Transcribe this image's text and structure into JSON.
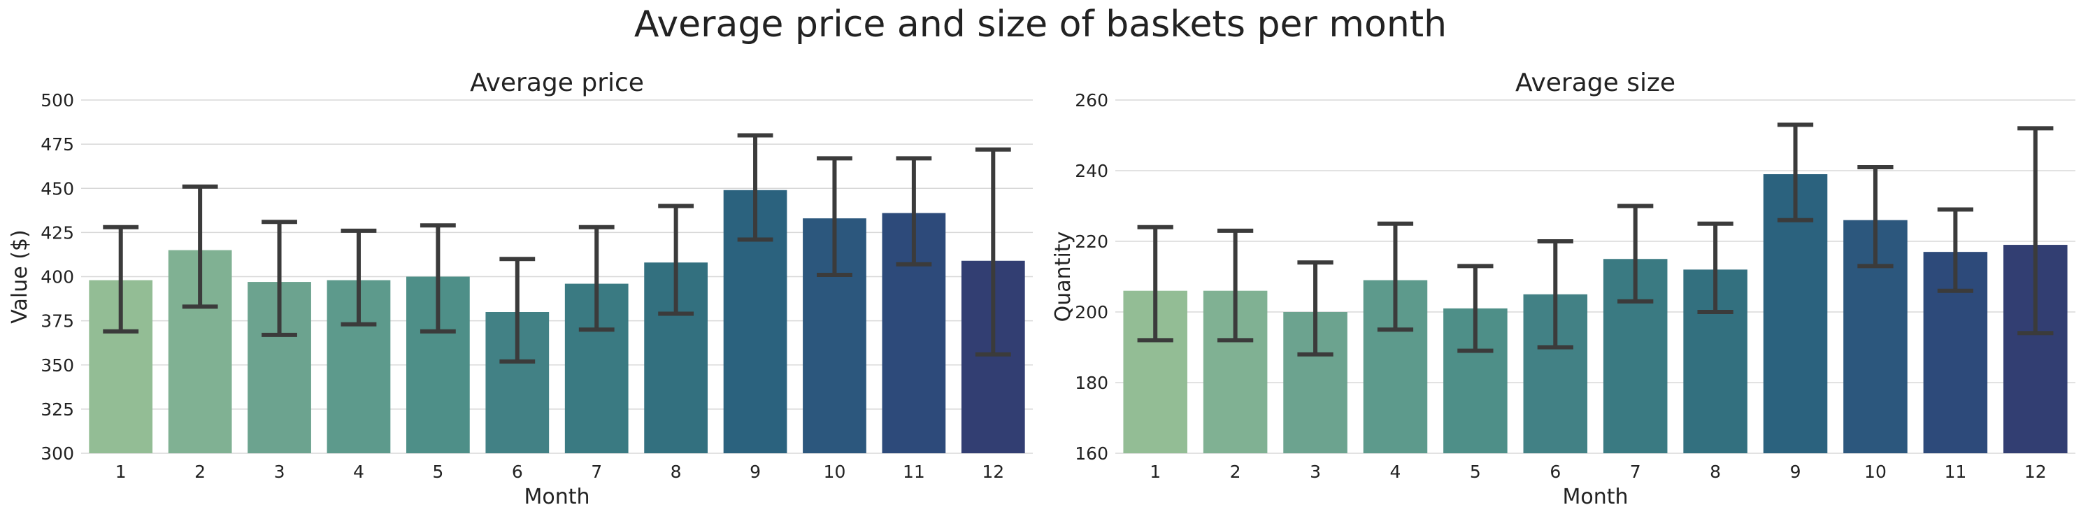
{
  "suptitle": "Average price and size of baskets per month",
  "chart_data": [
    {
      "type": "bar",
      "title": "Average price",
      "xlabel": "Month",
      "ylabel": "Value ($)",
      "ylim": [
        300,
        500
      ],
      "yticks": [
        300,
        325,
        350,
        375,
        400,
        425,
        450,
        475,
        500
      ],
      "grid": true,
      "categories": [
        "1",
        "2",
        "3",
        "4",
        "5",
        "6",
        "7",
        "8",
        "9",
        "10",
        "11",
        "12"
      ],
      "values": [
        398,
        415,
        397,
        398,
        400,
        380,
        396,
        408,
        449,
        433,
        436,
        409
      ],
      "error_low": [
        369,
        383,
        367,
        373,
        369,
        352,
        370,
        379,
        421,
        401,
        407,
        356
      ],
      "error_high": [
        428,
        451,
        431,
        426,
        429,
        410,
        428,
        440,
        480,
        467,
        467,
        472
      ],
      "colors": [
        "#93bd95",
        "#80b193",
        "#6ca38f",
        "#5d9a8c",
        "#4e8f88",
        "#428185",
        "#3a7a82",
        "#33707f",
        "#2b627e",
        "#2c577d",
        "#2d4a7a",
        "#323e72"
      ]
    },
    {
      "type": "bar",
      "title": "Average size",
      "xlabel": "Month",
      "ylabel": "Quantity",
      "ylim": [
        160,
        260
      ],
      "yticks": [
        160,
        180,
        200,
        220,
        240,
        260
      ],
      "grid": true,
      "categories": [
        "1",
        "2",
        "3",
        "4",
        "5",
        "6",
        "7",
        "8",
        "9",
        "10",
        "11",
        "12"
      ],
      "values": [
        206,
        206,
        200,
        209,
        201,
        205,
        215,
        212,
        239,
        226,
        217,
        219
      ],
      "error_low": [
        192,
        192,
        188,
        195,
        189,
        190,
        203,
        200,
        226,
        213,
        206,
        194
      ],
      "error_high": [
        224,
        223,
        214,
        225,
        213,
        220,
        230,
        225,
        253,
        241,
        229,
        252
      ],
      "colors": [
        "#93bd95",
        "#80b193",
        "#6ca38f",
        "#5d9a8c",
        "#4e8f88",
        "#428185",
        "#3a7a82",
        "#33707f",
        "#2b627e",
        "#2c577d",
        "#2d4a7a",
        "#323e72"
      ]
    }
  ]
}
